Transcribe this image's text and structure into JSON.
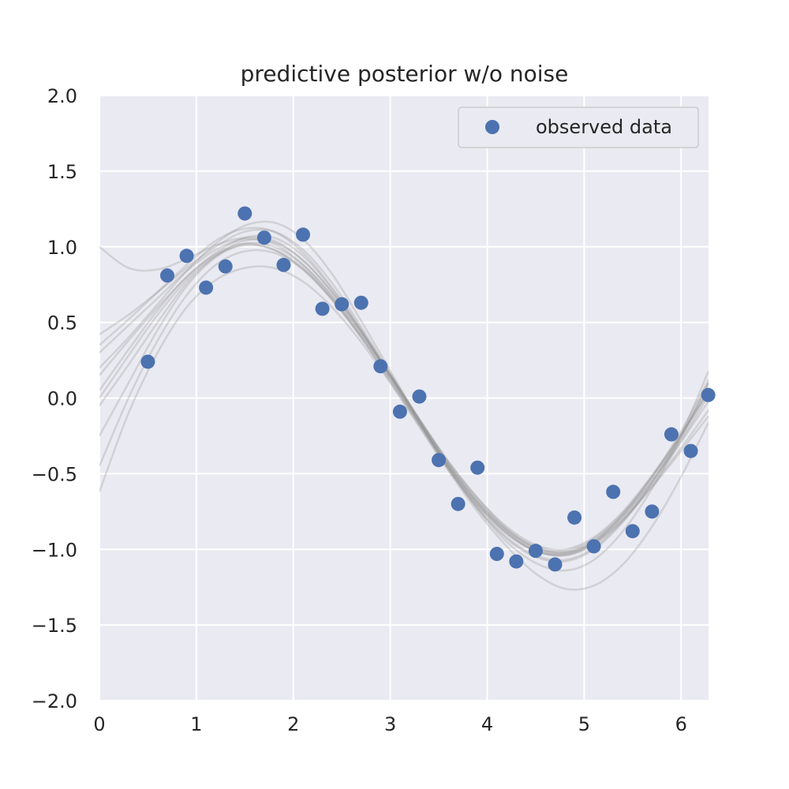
{
  "chart_data": {
    "type": "scatter",
    "title": "predictive posterior w/o noise",
    "xlabel": "",
    "ylabel": "",
    "xlim": [
      0,
      6.283
    ],
    "ylim": [
      -2.0,
      2.0
    ],
    "x_ticks": [
      0,
      1,
      2,
      3,
      4,
      5,
      6
    ],
    "x_tick_labels": [
      "0",
      "1",
      "2",
      "3",
      "4",
      "5",
      "6"
    ],
    "y_ticks": [
      -2.0,
      -1.5,
      -1.0,
      -0.5,
      0.0,
      0.5,
      1.0,
      1.5,
      2.0
    ],
    "y_tick_labels": [
      "−2.0",
      "−1.5",
      "−1.0",
      "−0.5",
      "0.0",
      "0.5",
      "1.0",
      "1.5",
      "2.0"
    ],
    "grid": true,
    "legend_position": "top-right",
    "colors": {
      "background": "#eaeaf2",
      "grid": "#ffffff",
      "points": "#4c72b0",
      "samples": "#8c8c8c"
    },
    "series": [
      {
        "name": "observed data",
        "kind": "scatter",
        "x": [
          0.5,
          0.7,
          0.9,
          1.1,
          1.3,
          1.5,
          1.7,
          1.9,
          2.1,
          2.3,
          2.5,
          2.7,
          2.9,
          3.1,
          3.3,
          3.5,
          3.7,
          3.9,
          4.1,
          4.3,
          4.5,
          4.7,
          4.9,
          5.1,
          5.3,
          5.5,
          5.7,
          5.9,
          6.1,
          6.28
        ],
        "y": [
          0.24,
          0.81,
          0.94,
          0.73,
          0.87,
          1.22,
          1.06,
          0.88,
          1.08,
          0.59,
          0.62,
          0.63,
          0.21,
          -0.09,
          0.01,
          -0.41,
          -0.7,
          -0.46,
          -1.03,
          -1.08,
          -1.01,
          -1.1,
          -0.79,
          -0.98,
          -0.62,
          -0.88,
          -0.75,
          -0.24,
          -0.35,
          0.02
        ]
      },
      {
        "kind": "posterior-samples",
        "x": [
          0,
          0.3,
          0.6,
          0.9,
          1.2,
          1.5,
          1.8,
          2.1,
          2.4,
          2.7,
          3.0,
          3.3,
          3.6,
          3.9,
          4.2,
          4.5,
          4.8,
          5.1,
          5.4,
          5.7,
          6.0,
          6.283
        ],
        "samples": [
          [
            0.05,
            0.32,
            0.58,
            0.8,
            0.95,
            1.02,
            0.98,
            0.86,
            0.66,
            0.41,
            0.13,
            -0.16,
            -0.44,
            -0.68,
            -0.87,
            -0.99,
            -1.02,
            -0.95,
            -0.78,
            -0.55,
            -0.28,
            0.02
          ],
          [
            0.3,
            0.48,
            0.66,
            0.84,
            0.98,
            1.05,
            1.02,
            0.88,
            0.67,
            0.42,
            0.15,
            -0.14,
            -0.42,
            -0.66,
            -0.86,
            -0.98,
            -1.01,
            -0.93,
            -0.76,
            -0.52,
            -0.24,
            0.06
          ],
          [
            -0.25,
            0.1,
            0.45,
            0.74,
            0.93,
            1.02,
            1.0,
            0.88,
            0.68,
            0.43,
            0.14,
            -0.16,
            -0.45,
            -0.7,
            -0.89,
            -1.01,
            -1.04,
            -0.96,
            -0.79,
            -0.55,
            -0.26,
            0.05
          ],
          [
            0.15,
            0.38,
            0.6,
            0.8,
            0.96,
            1.06,
            1.06,
            0.94,
            0.72,
            0.45,
            0.16,
            -0.14,
            -0.43,
            -0.68,
            -0.87,
            -0.99,
            -1.02,
            -0.94,
            -0.77,
            -0.53,
            -0.25,
            0.1
          ],
          [
            -0.45,
            0.0,
            0.38,
            0.68,
            0.88,
            0.97,
            0.96,
            0.85,
            0.65,
            0.4,
            0.11,
            -0.18,
            -0.47,
            -0.71,
            -0.9,
            -1.01,
            -1.03,
            -0.95,
            -0.77,
            -0.52,
            -0.22,
            0.12
          ],
          [
            0.42,
            0.55,
            0.7,
            0.86,
            1.0,
            1.1,
            1.1,
            0.98,
            0.76,
            0.47,
            0.16,
            -0.16,
            -0.46,
            -0.72,
            -0.92,
            -1.04,
            -1.07,
            -0.99,
            -0.81,
            -0.57,
            -0.29,
            -0.02
          ],
          [
            1.0,
            0.86,
            0.85,
            0.92,
            1.01,
            1.06,
            1.04,
            0.91,
            0.7,
            0.44,
            0.15,
            -0.14,
            -0.42,
            -0.66,
            -0.85,
            -0.97,
            -1.0,
            -0.92,
            -0.75,
            -0.51,
            -0.24,
            0.04
          ],
          [
            -0.62,
            -0.1,
            0.3,
            0.6,
            0.78,
            0.86,
            0.86,
            0.77,
            0.6,
            0.37,
            0.1,
            -0.19,
            -0.48,
            -0.75,
            -0.98,
            -1.16,
            -1.26,
            -1.24,
            -1.1,
            -0.85,
            -0.52,
            -0.16
          ],
          [
            0.2,
            0.4,
            0.62,
            0.84,
            1.02,
            1.14,
            1.16,
            1.05,
            0.82,
            0.51,
            0.18,
            -0.15,
            -0.46,
            -0.73,
            -0.95,
            -1.09,
            -1.14,
            -1.07,
            -0.88,
            -0.6,
            -0.26,
            0.1
          ],
          [
            -0.05,
            0.22,
            0.5,
            0.76,
            0.94,
            1.04,
            1.03,
            0.91,
            0.7,
            0.44,
            0.15,
            -0.15,
            -0.44,
            -0.69,
            -0.88,
            -1.0,
            -1.03,
            -0.96,
            -0.8,
            -0.58,
            -0.33,
            -0.08
          ],
          [
            0.35,
            0.52,
            0.7,
            0.88,
            1.04,
            1.12,
            1.1,
            0.96,
            0.73,
            0.45,
            0.14,
            -0.17,
            -0.47,
            -0.73,
            -0.93,
            -1.05,
            -1.08,
            -1.0,
            -0.82,
            -0.56,
            -0.24,
            0.18
          ],
          [
            0.0,
            0.28,
            0.55,
            0.78,
            0.94,
            1.01,
            0.98,
            0.85,
            0.65,
            0.4,
            0.12,
            -0.17,
            -0.45,
            -0.7,
            -0.89,
            -1.01,
            -1.04,
            -0.97,
            -0.81,
            -0.59,
            -0.35,
            -0.12
          ]
        ]
      }
    ]
  }
}
